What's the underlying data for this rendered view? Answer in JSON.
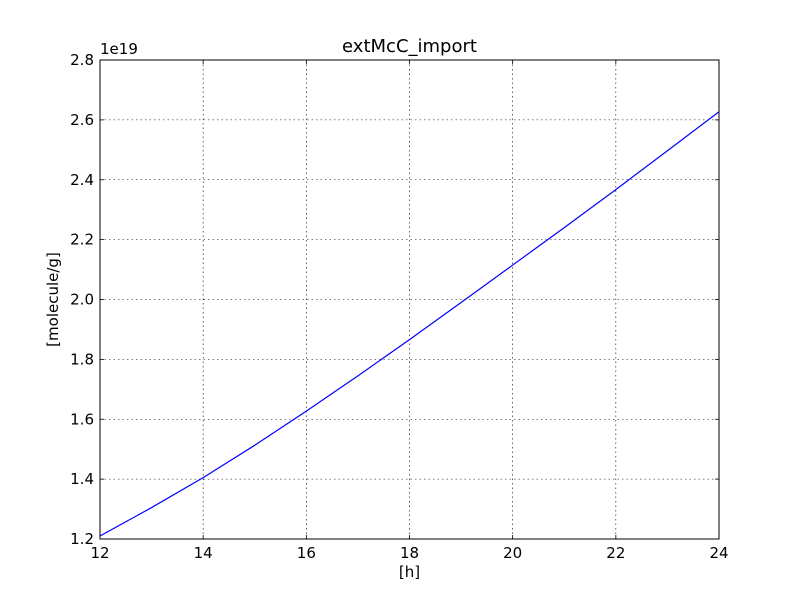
{
  "chart_data": {
    "type": "line",
    "title": "extMcC_import",
    "xlabel": "[h]",
    "ylabel": "[molecule/g]",
    "offset_label": "1e19",
    "xlim": [
      12,
      24
    ],
    "ylim": [
      1.2,
      2.8
    ],
    "x_ticks": [
      12,
      14,
      16,
      18,
      20,
      22,
      24
    ],
    "y_ticks": [
      1.2,
      1.4,
      1.6,
      1.8,
      2.0,
      2.2,
      2.4,
      2.6,
      2.8
    ],
    "x_tick_labels": [
      "12",
      "14",
      "16",
      "18",
      "20",
      "22",
      "24"
    ],
    "y_tick_labels": [
      "1.2",
      "1.4",
      "1.6",
      "1.8",
      "2.0",
      "2.2",
      "2.4",
      "2.6",
      "2.8"
    ],
    "grid": true,
    "series": [
      {
        "color": "#0000ff",
        "x": [
          12,
          13,
          14,
          15,
          16,
          17,
          18,
          19,
          20,
          21,
          22,
          23,
          24
        ],
        "y": [
          1.21,
          1.305,
          1.405,
          1.513,
          1.627,
          1.745,
          1.866,
          1.99,
          2.115,
          2.24,
          2.367,
          2.497,
          2.627
        ]
      }
    ]
  }
}
